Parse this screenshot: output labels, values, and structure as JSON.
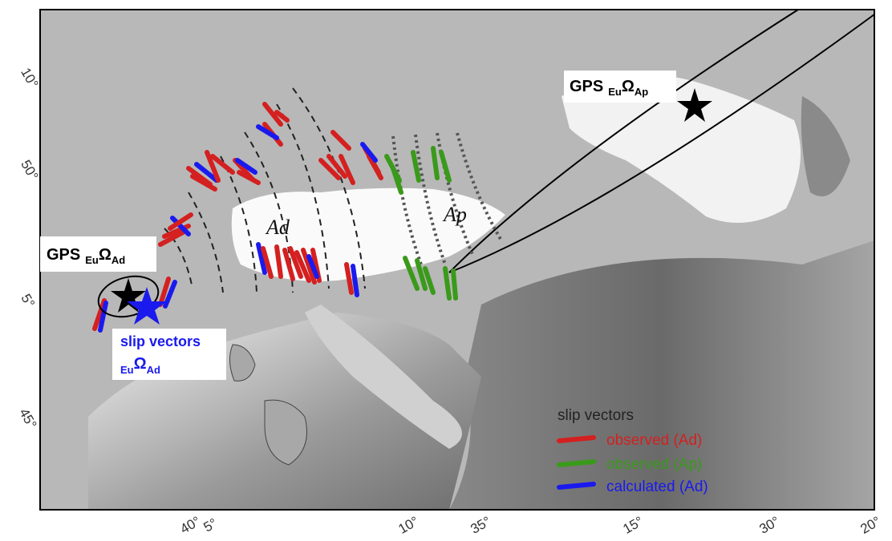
{
  "gps_ap": {
    "prefix": "GPS",
    "sub": "Eu",
    "omega": "Ω",
    "plate": "Ap"
  },
  "gps_ad": {
    "prefix": "GPS",
    "sub": "Eu",
    "omega": "Ω",
    "plate": "Ad"
  },
  "slip_label": {
    "text": "slip vectors",
    "sub": "Eu",
    "omega": "Ω",
    "plate": "Ad"
  },
  "region_labels": [
    "Ad",
    "Ap"
  ],
  "legend": {
    "title": "slip vectors",
    "items": [
      "observed (Ad)",
      "observed (Ap)",
      "calculated (Ad)"
    ]
  },
  "lat_labels": [
    "10°",
    "50°",
    "5°",
    "45°"
  ],
  "lon_labels": [
    "40°",
    "5°",
    "10°",
    "35°",
    "15°",
    "30°",
    "20°"
  ]
}
